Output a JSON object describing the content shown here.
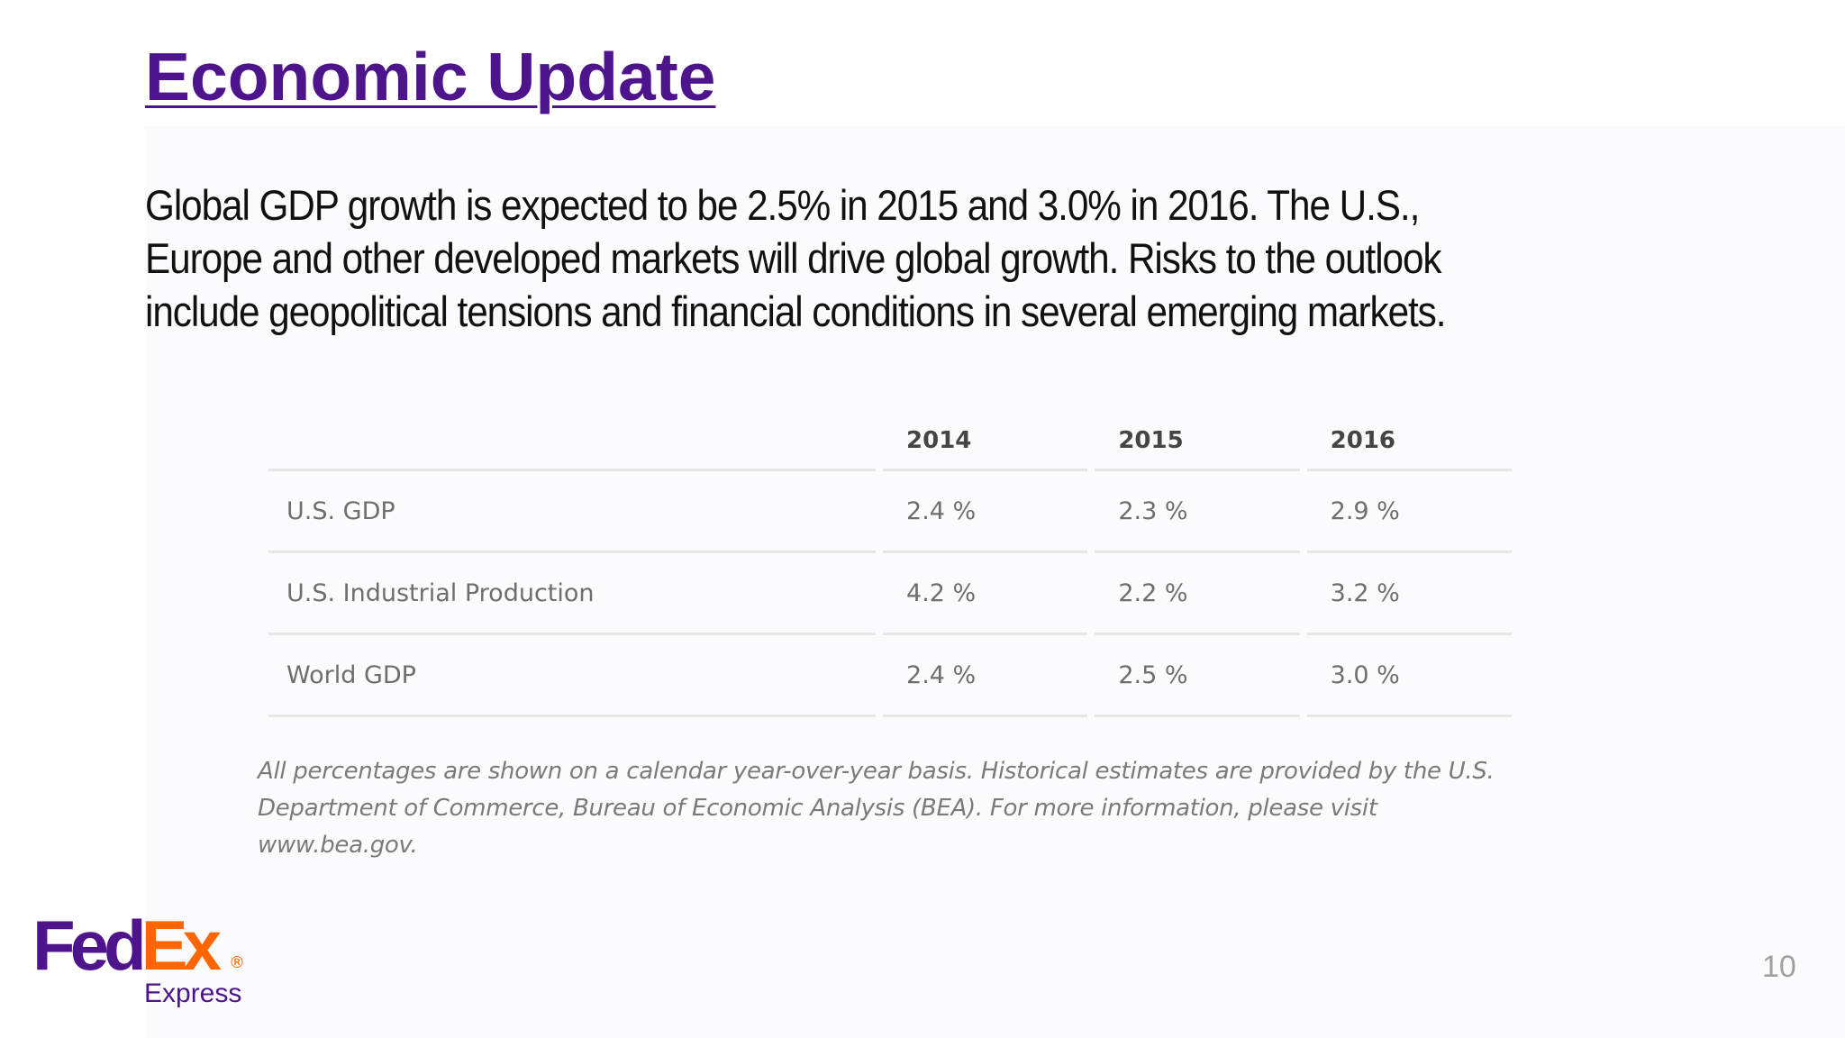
{
  "slide": {
    "title": "Economic Update",
    "body": "Global GDP growth is expected to be 2.5% in 2015 and 3.0% in 2016. The U.S., Europe and other developed markets will drive global growth. Risks to the outlook include geopolitical tensions and financial conditions in several emerging markets.",
    "page_number": "10"
  },
  "table": {
    "headers": [
      "",
      "2014",
      "2015",
      "2016"
    ],
    "rows": [
      {
        "label": "U.S. GDP",
        "values": [
          "2.4 %",
          "2.3 %",
          "2.9 %"
        ]
      },
      {
        "label": "U.S. Industrial Production",
        "values": [
          "4.2 %",
          "2.2 %",
          "3.2 %"
        ]
      },
      {
        "label": "World GDP",
        "values": [
          "2.4 %",
          "2.5 %",
          "3.0 %"
        ]
      }
    ]
  },
  "footnote": "All percentages are shown on a calendar year-over-year basis. Historical estimates are provided by the U.S. Department of Commerce, Bureau of Economic Analysis (BEA). For more information, please visit www.bea.gov.",
  "logo": {
    "part1": "Fed",
    "part2": "Ex",
    "registered": "®",
    "subtitle": "Express"
  },
  "colors": {
    "brand_purple": "#4d148c",
    "brand_orange": "#ff6600"
  }
}
